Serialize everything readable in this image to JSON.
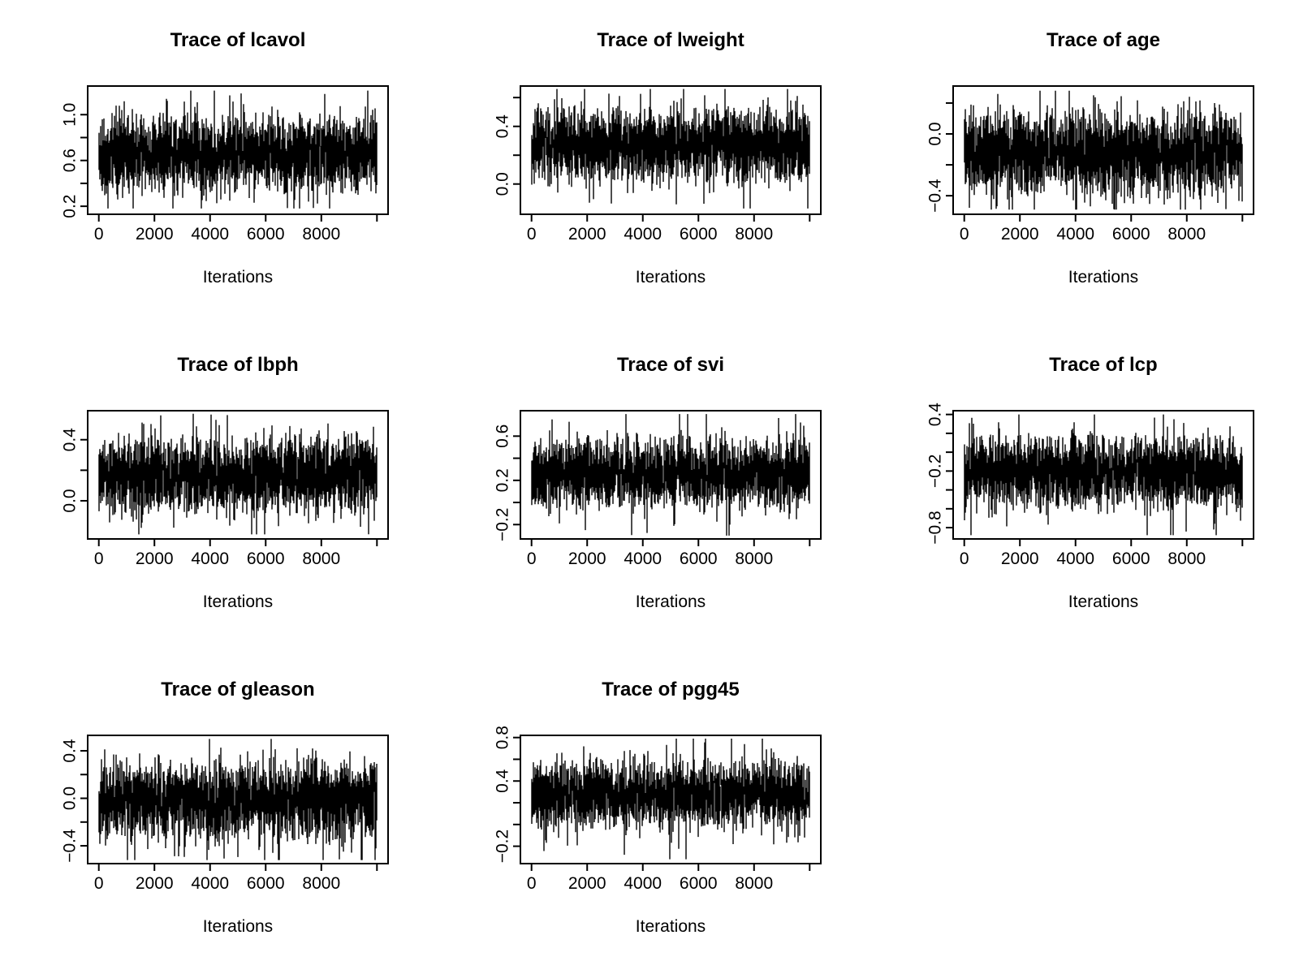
{
  "page": {
    "background": "#ffffff"
  },
  "chart_data": {
    "type": "line",
    "subtype": "mcmc-trace-grid",
    "grid": {
      "rows": 3,
      "cols": 3,
      "filled_cells": 8
    },
    "ink_color": "#000000",
    "x": {
      "label": "Iterations",
      "range": [
        0,
        10000
      ],
      "tick_values": [
        0,
        2000,
        4000,
        6000,
        8000,
        10000
      ],
      "tick_labels": [
        "0",
        "2000",
        "4000",
        "6000",
        "8000",
        ""
      ]
    },
    "plots": [
      {
        "name": "lcavol",
        "title": "Trace of lcavol",
        "ylim": [
          0.13,
          1.25
        ],
        "yticks": [
          {
            "v": 1.0,
            "label": "1.0"
          },
          {
            "v": 0.8,
            "label": ""
          },
          {
            "v": 0.6,
            "label": "0.6"
          },
          {
            "v": 0.4,
            "label": ""
          },
          {
            "v": 0.2,
            "label": "0.2"
          }
        ],
        "summary": {
          "n": 10000,
          "mean": 0.66,
          "sd": 0.165,
          "min": 0.18,
          "max": 1.21
        },
        "seed": 11
      },
      {
        "name": "lweight",
        "title": "Trace of lweight",
        "ylim": [
          -0.21,
          0.68
        ],
        "yticks": [
          {
            "v": 0.6,
            "label": ""
          },
          {
            "v": 0.4,
            "label": "0.4"
          },
          {
            "v": 0.2,
            "label": ""
          },
          {
            "v": 0.0,
            "label": "0.0"
          }
        ],
        "summary": {
          "n": 10000,
          "mean": 0.27,
          "sd": 0.12,
          "min": -0.17,
          "max": 0.66
        },
        "seed": 22
      },
      {
        "name": "age",
        "title": "Trace of age",
        "ylim": [
          -0.52,
          0.31
        ],
        "yticks": [
          {
            "v": 0.2,
            "label": ""
          },
          {
            "v": 0.0,
            "label": "0.0"
          },
          {
            "v": -0.2,
            "label": ""
          },
          {
            "v": -0.4,
            "label": "−0.4"
          }
        ],
        "summary": {
          "n": 10000,
          "mean": -0.13,
          "sd": 0.13,
          "min": -0.49,
          "max": 0.28
        },
        "seed": 33
      },
      {
        "name": "lbph",
        "title": "Trace of lbph",
        "ylim": [
          -0.25,
          0.59
        ],
        "yticks": [
          {
            "v": 0.4,
            "label": "0.4"
          },
          {
            "v": 0.2,
            "label": ""
          },
          {
            "v": 0.0,
            "label": "0.0"
          }
        ],
        "summary": {
          "n": 10000,
          "mean": 0.17,
          "sd": 0.12,
          "min": -0.22,
          "max": 0.57
        },
        "seed": 44
      },
      {
        "name": "svi",
        "title": "Trace of svi",
        "ylim": [
          -0.33,
          0.83
        ],
        "yticks": [
          {
            "v": 0.6,
            "label": "0.6"
          },
          {
            "v": 0.4,
            "label": ""
          },
          {
            "v": 0.2,
            "label": "0.2"
          },
          {
            "v": 0.0,
            "label": ""
          },
          {
            "v": -0.2,
            "label": "−0.2"
          }
        ],
        "summary": {
          "n": 10000,
          "mean": 0.26,
          "sd": 0.15,
          "min": -0.3,
          "max": 0.8
        },
        "seed": 55
      },
      {
        "name": "lcp",
        "title": "Trace of lcp",
        "ylim": [
          -0.92,
          0.44
        ],
        "yticks": [
          {
            "v": 0.4,
            "label": "0.4"
          },
          {
            "v": 0.2,
            "label": ""
          },
          {
            "v": 0.0,
            "label": ""
          },
          {
            "v": -0.2,
            "label": "−0.2"
          },
          {
            "v": -0.4,
            "label": ""
          },
          {
            "v": -0.6,
            "label": ""
          },
          {
            "v": -0.8,
            "label": "−0.8"
          }
        ],
        "summary": {
          "n": 10000,
          "mean": -0.2,
          "sd": 0.175,
          "min": -0.88,
          "max": 0.4
        },
        "seed": 66
      },
      {
        "name": "gleason",
        "title": "Trace of gleason",
        "ylim": [
          -0.55,
          0.53
        ],
        "yticks": [
          {
            "v": 0.4,
            "label": "0.4"
          },
          {
            "v": 0.2,
            "label": ""
          },
          {
            "v": 0.0,
            "label": "0.0"
          },
          {
            "v": -0.2,
            "label": ""
          },
          {
            "v": -0.4,
            "label": "−0.4"
          }
        ],
        "summary": {
          "n": 10000,
          "mean": -0.03,
          "sd": 0.16,
          "min": -0.52,
          "max": 0.5
        },
        "seed": 77
      },
      {
        "name": "pgg45",
        "title": "Trace of pgg45",
        "ylim": [
          -0.36,
          0.82
        ],
        "yticks": [
          {
            "v": 0.8,
            "label": "0.8"
          },
          {
            "v": 0.6,
            "label": ""
          },
          {
            "v": 0.4,
            "label": "0.4"
          },
          {
            "v": 0.2,
            "label": ""
          },
          {
            "v": 0.0,
            "label": ""
          },
          {
            "v": -0.2,
            "label": "−0.2"
          }
        ],
        "summary": {
          "n": 10000,
          "mean": 0.28,
          "sd": 0.15,
          "min": -0.32,
          "max": 0.79
        },
        "seed": 88
      }
    ]
  }
}
